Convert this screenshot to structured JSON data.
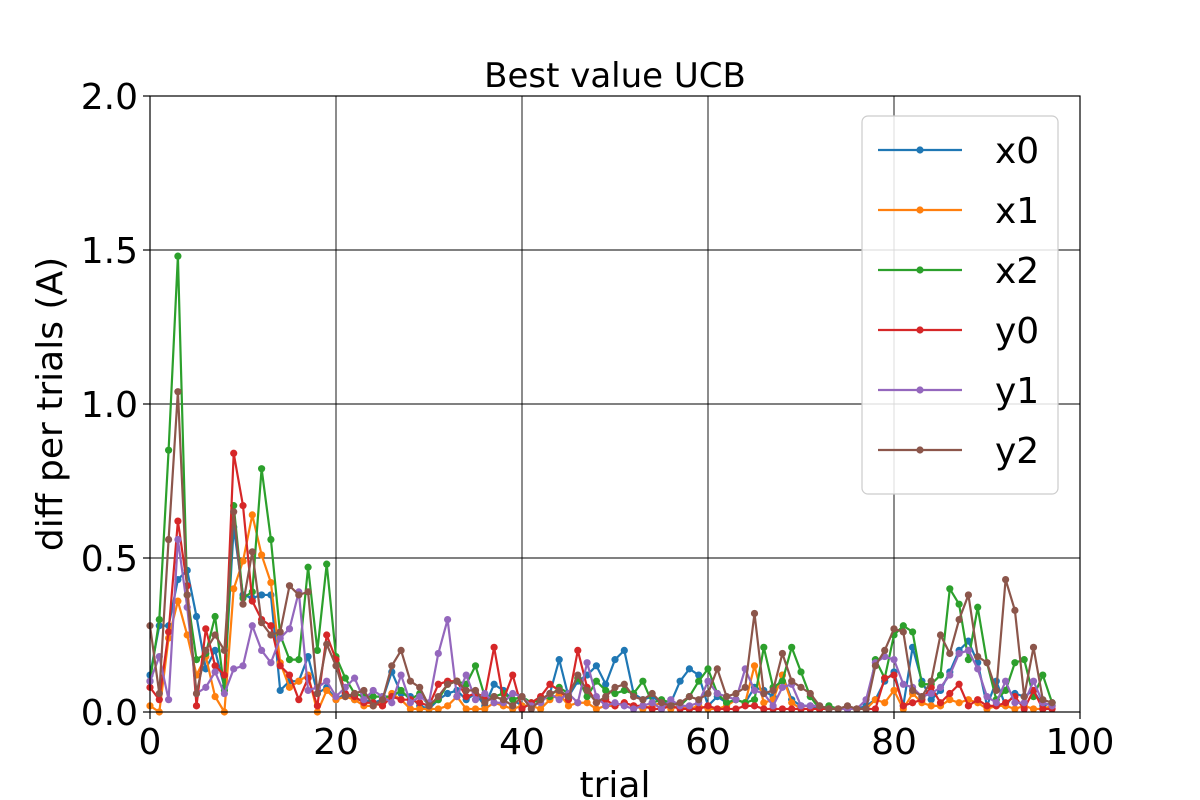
{
  "chart_data": {
    "type": "line",
    "title": "Best value UCB",
    "xlabel": "trial",
    "ylabel": "diff  per  trials (A)",
    "xlim": [
      0,
      100
    ],
    "ylim": [
      0,
      2.0
    ],
    "xticks": [
      0,
      20,
      40,
      60,
      80,
      100
    ],
    "xtick_labels": [
      "0",
      "20",
      "40",
      "60",
      "80",
      "100"
    ],
    "yticks": [
      0,
      0.5,
      1.0,
      1.5,
      2.0
    ],
    "ytick_labels": [
      "0.0",
      "0.5",
      "1.0",
      "1.5",
      "2.0"
    ],
    "grid": true,
    "legend_position": "top-right",
    "markers": true,
    "series": [
      {
        "name": "x0",
        "color": "#1f77b4",
        "values": [
          0.12,
          0.28,
          0.28,
          0.43,
          0.46,
          0.31,
          0.14,
          0.2,
          0.08,
          0.6,
          0.38,
          0.37,
          0.38,
          0.38,
          0.07,
          0.1,
          0.1,
          0.18,
          0.06,
          0.08,
          0.04,
          0.06,
          0.04,
          0.04,
          0.03,
          0.04,
          0.13,
          0.06,
          0.05,
          0.02,
          0.01,
          0.04,
          0.06,
          0.07,
          0.04,
          0.06,
          0.02,
          0.09,
          0.07,
          0.04,
          0.02,
          0.02,
          0.03,
          0.06,
          0.17,
          0.05,
          0.1,
          0.12,
          0.15,
          0.09,
          0.17,
          0.2,
          0.06,
          0.04,
          0.05,
          0.03,
          0.03,
          0.1,
          0.14,
          0.12,
          0.02,
          0.05,
          0.03,
          0.04,
          0.03,
          0.08,
          0.07,
          0.05,
          0.12,
          0.04,
          0.02,
          0.02,
          0.01,
          0.01,
          0.01,
          0.01,
          0.01,
          0.02,
          0.04,
          0.1,
          0.13,
          0.02,
          0.21,
          0.1,
          0.04,
          0.07,
          0.13,
          0.2,
          0.23,
          0.16,
          0.02,
          0.1,
          0.02,
          0.06,
          0.05,
          0.07,
          0.02,
          0.03
        ]
      },
      {
        "name": "x1",
        "color": "#ff7f0e",
        "values": [
          0.02,
          0.0,
          0.24,
          0.36,
          0.25,
          0.12,
          0.18,
          0.05,
          0.0,
          0.4,
          0.49,
          0.64,
          0.51,
          0.42,
          0.16,
          0.08,
          0.1,
          0.12,
          0.0,
          0.07,
          0.04,
          0.05,
          0.04,
          0.02,
          0.02,
          0.03,
          0.06,
          0.04,
          0.01,
          0.01,
          0.01,
          0.01,
          0.02,
          0.05,
          0.01,
          0.01,
          0.01,
          0.03,
          0.02,
          0.01,
          0.02,
          0.02,
          0.01,
          0.04,
          0.06,
          0.02,
          0.03,
          0.03,
          0.01,
          0.02,
          0.02,
          0.03,
          0.02,
          0.01,
          0.02,
          0.03,
          0.01,
          0.02,
          0.01,
          0.02,
          0.01,
          0.01,
          0.02,
          0.04,
          0.03,
          0.15,
          0.03,
          0.04,
          0.12,
          0.03,
          0.01,
          0.01,
          0.01,
          0.01,
          0.01,
          0.01,
          0.01,
          0.01,
          0.04,
          0.03,
          0.07,
          0.01,
          0.06,
          0.03,
          0.02,
          0.02,
          0.04,
          0.03,
          0.04,
          0.03,
          0.01,
          0.02,
          0.02,
          0.01,
          0.02,
          0.01,
          0.01,
          0.02
        ]
      },
      {
        "name": "x2",
        "color": "#2ca02c",
        "values": [
          0.1,
          0.3,
          0.85,
          1.48,
          0.38,
          0.17,
          0.19,
          0.31,
          0.07,
          0.67,
          0.37,
          0.39,
          0.79,
          0.56,
          0.25,
          0.17,
          0.17,
          0.47,
          0.2,
          0.48,
          0.18,
          0.11,
          0.06,
          0.05,
          0.05,
          0.05,
          0.05,
          0.07,
          0.04,
          0.06,
          0.02,
          0.04,
          0.09,
          0.1,
          0.09,
          0.15,
          0.05,
          0.05,
          0.06,
          0.04,
          0.05,
          0.03,
          0.04,
          0.05,
          0.08,
          0.06,
          0.11,
          0.05,
          0.1,
          0.07,
          0.06,
          0.07,
          0.06,
          0.1,
          0.03,
          0.04,
          0.03,
          0.02,
          0.05,
          0.1,
          0.14,
          0.06,
          0.03,
          0.04,
          0.03,
          0.04,
          0.21,
          0.08,
          0.1,
          0.21,
          0.13,
          0.05,
          0.01,
          0.02,
          0.01,
          0.01,
          0.01,
          0.01,
          0.17,
          0.11,
          0.25,
          0.28,
          0.26,
          0.09,
          0.09,
          0.12,
          0.4,
          0.35,
          0.17,
          0.34,
          0.16,
          0.04,
          0.07,
          0.16,
          0.17,
          0.05,
          0.12,
          0.03
        ]
      },
      {
        "name": "y0",
        "color": "#d62728",
        "values": [
          0.08,
          0.04,
          0.26,
          0.62,
          0.41,
          0.02,
          0.27,
          0.15,
          0.12,
          0.84,
          0.67,
          0.36,
          0.3,
          0.28,
          0.15,
          0.12,
          0.04,
          0.11,
          0.02,
          0.25,
          0.17,
          0.06,
          0.05,
          0.03,
          0.03,
          0.02,
          0.05,
          0.04,
          0.04,
          0.03,
          0.02,
          0.09,
          0.1,
          0.1,
          0.05,
          0.06,
          0.05,
          0.21,
          0.04,
          0.12,
          0.01,
          0.03,
          0.05,
          0.09,
          0.07,
          0.04,
          0.2,
          0.08,
          0.03,
          0.04,
          0.02,
          0.03,
          0.02,
          0.02,
          0.01,
          0.01,
          0.02,
          0.01,
          0.01,
          0.01,
          0.02,
          0.01,
          0.01,
          0.01,
          0.02,
          0.02,
          0.01,
          0.01,
          0.01,
          0.01,
          0.01,
          0.01,
          0.01,
          0.01,
          0.01,
          0.01,
          0.01,
          0.01,
          0.01,
          0.11,
          0.12,
          0.02,
          0.03,
          0.04,
          0.08,
          0.03,
          0.06,
          0.09,
          0.02,
          0.04,
          0.02,
          0.02,
          0.03,
          0.05,
          0.01,
          0.07,
          0.01,
          0.01
        ]
      },
      {
        "name": "y1",
        "color": "#9467bd",
        "values": [
          0.1,
          0.18,
          0.04,
          0.56,
          0.34,
          0.06,
          0.08,
          0.13,
          0.06,
          0.14,
          0.15,
          0.28,
          0.2,
          0.16,
          0.24,
          0.27,
          0.39,
          0.07,
          0.08,
          0.1,
          0.05,
          0.08,
          0.11,
          0.04,
          0.07,
          0.05,
          0.03,
          0.12,
          0.03,
          0.05,
          0.03,
          0.19,
          0.3,
          0.05,
          0.12,
          0.04,
          0.06,
          0.03,
          0.03,
          0.06,
          0.05,
          0.02,
          0.03,
          0.06,
          0.04,
          0.06,
          0.03,
          0.16,
          0.05,
          0.02,
          0.03,
          0.02,
          0.01,
          0.02,
          0.03,
          0.01,
          0.04,
          0.02,
          0.02,
          0.03,
          0.1,
          0.06,
          0.05,
          0.04,
          0.14,
          0.07,
          0.06,
          0.02,
          0.08,
          0.09,
          0.02,
          0.02,
          0.02,
          0.01,
          0.01,
          0.01,
          0.01,
          0.04,
          0.16,
          0.18,
          0.17,
          0.09,
          0.08,
          0.05,
          0.06,
          0.08,
          0.12,
          0.19,
          0.2,
          0.14,
          0.05,
          0.03,
          0.1,
          0.03,
          0.03,
          0.1,
          0.03,
          0.02
        ]
      },
      {
        "name": "y2",
        "color": "#8c564b",
        "values": [
          0.28,
          0.06,
          0.56,
          1.04,
          0.38,
          0.06,
          0.2,
          0.25,
          0.2,
          0.65,
          0.35,
          0.52,
          0.29,
          0.25,
          0.26,
          0.41,
          0.38,
          0.39,
          0.06,
          0.22,
          0.15,
          0.05,
          0.06,
          0.07,
          0.02,
          0.04,
          0.15,
          0.2,
          0.1,
          0.08,
          0.02,
          0.05,
          0.09,
          0.1,
          0.07,
          0.07,
          0.03,
          0.05,
          0.04,
          0.02,
          0.05,
          0.01,
          0.04,
          0.06,
          0.07,
          0.05,
          0.12,
          0.07,
          0.03,
          0.05,
          0.08,
          0.09,
          0.05,
          0.04,
          0.06,
          0.03,
          0.02,
          0.03,
          0.05,
          0.04,
          0.06,
          0.14,
          0.05,
          0.06,
          0.08,
          0.32,
          0.06,
          0.07,
          0.19,
          0.1,
          0.08,
          0.06,
          0.02,
          0.01,
          0.01,
          0.02,
          0.01,
          0.01,
          0.15,
          0.2,
          0.27,
          0.26,
          0.07,
          0.05,
          0.1,
          0.25,
          0.19,
          0.3,
          0.38,
          0.18,
          0.16,
          0.07,
          0.43,
          0.33,
          0.05,
          0.21,
          0.04,
          0.03
        ]
      }
    ]
  }
}
